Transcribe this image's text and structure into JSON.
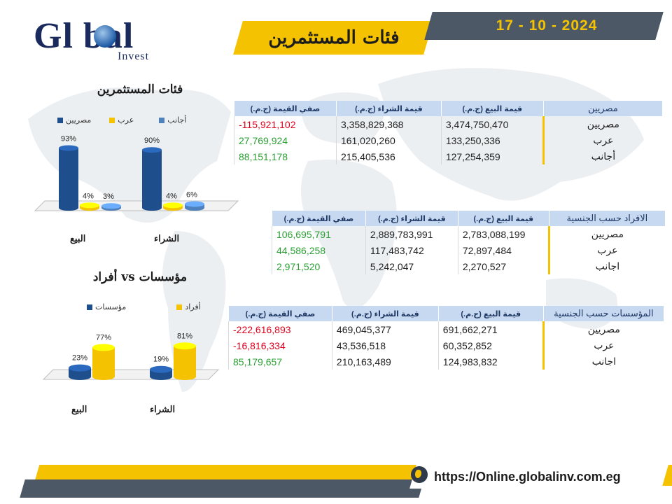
{
  "header": {
    "date": "17 - 10 - 2024",
    "title": "فئات المستثمرين"
  },
  "logo": {
    "word": "Gl  bal",
    "sub": "Invest"
  },
  "footer": {
    "url": "https://Online.globalinv.com.eg"
  },
  "colors": {
    "yellow": "#f4c200",
    "dark_gray": "#4d5866",
    "navy": "#1f4e8c",
    "light_blue": "#4f81bd",
    "header_blue": "#c6d9f0",
    "negative": "#e0001b",
    "positive": "#2aa033"
  },
  "chart_data": [
    {
      "type": "bar",
      "title": "فئات المستثمرين",
      "categories": [
        "البيع",
        "الشراء"
      ],
      "series": [
        {
          "name": "مصريين",
          "color": "#1f4e8c",
          "values": [
            93,
            90
          ],
          "labels": [
            "93%",
            "90%"
          ]
        },
        {
          "name": "عرب",
          "color": "#f4c200",
          "values": [
            4,
            4
          ],
          "labels": [
            "4%",
            "4%"
          ]
        },
        {
          "name": "أجانب",
          "color": "#4f81bd",
          "values": [
            3,
            6
          ],
          "labels": [
            "3%",
            "6%"
          ]
        }
      ],
      "ylim": [
        0,
        100
      ]
    },
    {
      "type": "bar",
      "title": "أفراد vs مؤسسات",
      "categories": [
        "البيع",
        "الشراء"
      ],
      "series": [
        {
          "name": "مؤسسات",
          "color": "#1f4e8c",
          "values": [
            23,
            19
          ],
          "labels": [
            "23%",
            "19%"
          ]
        },
        {
          "name": "أفراد",
          "color": "#f4c200",
          "values": [
            77,
            81
          ],
          "labels": [
            "77%",
            "81%"
          ]
        }
      ],
      "ylim": [
        0,
        100
      ]
    }
  ],
  "tables": {
    "investors": {
      "headers": [
        "مصريين",
        "قيمة البيع (ج.م.)",
        "قيمة الشراء (ج.م.)",
        "صفي القيمة (ج.م.)"
      ],
      "rows": [
        {
          "label": "مصريين",
          "sell": "3,474,750,470",
          "buy": "3,358,829,368",
          "net": "-115,921,102",
          "sign": "neg"
        },
        {
          "label": "عرب",
          "sell": "133,250,336",
          "buy": "161,020,260",
          "net": "27,769,924",
          "sign": "pos"
        },
        {
          "label": "أجانب",
          "sell": "127,254,359",
          "buy": "215,405,536",
          "net": "88,151,178",
          "sign": "pos"
        }
      ]
    },
    "individuals": {
      "headers": [
        "الافراد حسب الجنسية",
        "قيمة البيع (ج.م.)",
        "قيمة الشراء (ج.م.)",
        "صفي القيمة (ج.م.)"
      ],
      "rows": [
        {
          "label": "مصريين",
          "sell": "2,783,088,199",
          "buy": "2,889,783,991",
          "net": "106,695,791",
          "sign": "pos"
        },
        {
          "label": "عرب",
          "sell": "72,897,484",
          "buy": "117,483,742",
          "net": "44,586,258",
          "sign": "pos"
        },
        {
          "label": "اجانب",
          "sell": "2,270,527",
          "buy": "5,242,047",
          "net": "2,971,520",
          "sign": "pos"
        }
      ]
    },
    "institutions": {
      "headers": [
        "المؤسسات حسب الجنسية",
        "قيمة البيع (ج.م.)",
        "قيمة الشراء (ج.م.)",
        "صفي القيمة (ج.م.)"
      ],
      "rows": [
        {
          "label": "مصريين",
          "sell": "691,662,271",
          "buy": "469,045,377",
          "net": "-222,616,893",
          "sign": "neg"
        },
        {
          "label": "عرب",
          "sell": "60,352,852",
          "buy": "43,536,518",
          "net": "-16,816,334",
          "sign": "neg"
        },
        {
          "label": "اجانب",
          "sell": "124,983,832",
          "buy": "210,163,489",
          "net": "85,179,657",
          "sign": "pos"
        }
      ]
    }
  }
}
